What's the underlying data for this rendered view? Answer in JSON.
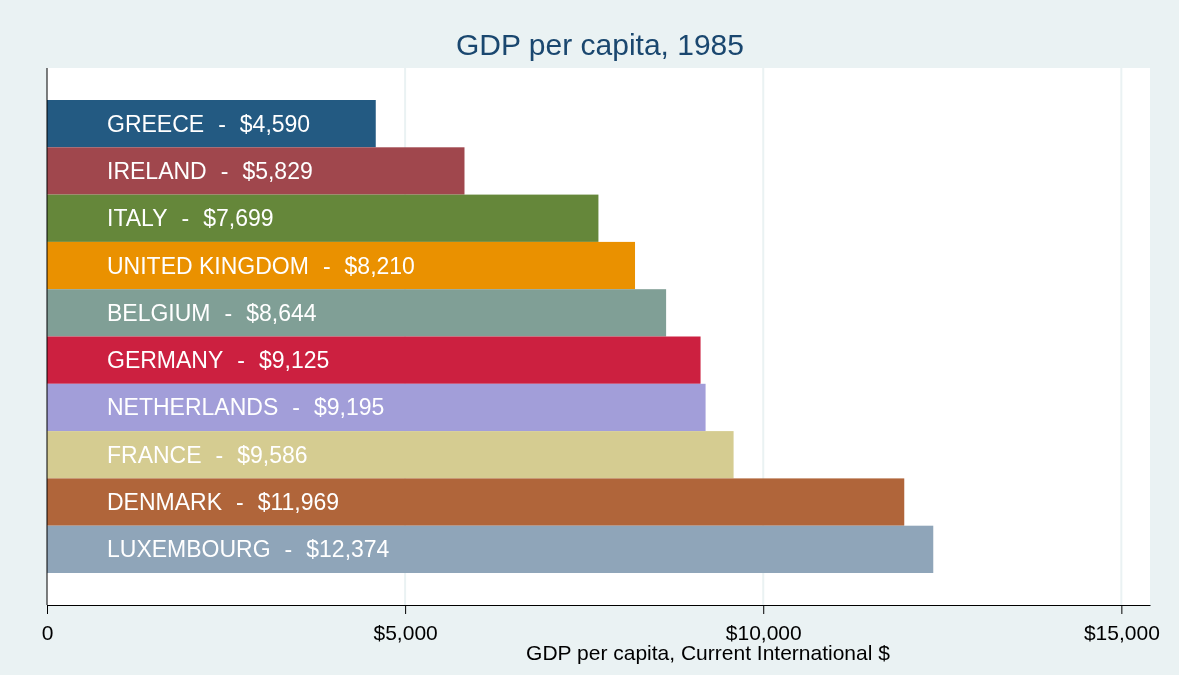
{
  "chart_data": {
    "type": "bar",
    "orientation": "horizontal",
    "title": "GDP per capita, 1985",
    "xlabel": "GDP per capita, Current International $",
    "categories": [
      "GREECE",
      "IRELAND",
      "ITALY",
      "UNITED KINGDOM",
      "BELGIUM",
      "GERMANY",
      "NETHERLANDS",
      "FRANCE",
      "DENMARK",
      "LUXEMBOURG"
    ],
    "values": [
      4590,
      5829,
      7699,
      8210,
      8644,
      9125,
      9195,
      9586,
      11969,
      12374
    ],
    "value_labels": [
      "$4,590",
      "$5,829",
      "$7,699",
      "$8,210",
      "$8,644",
      "$9,125",
      "$9,195",
      "$9,586",
      "$11,969",
      "$12,374"
    ],
    "annotations": [
      {
        "text": "-",
        "y": "GREECE"
      },
      {
        "text": "-",
        "y": "IRELAND"
      },
      {
        "text": "-",
        "y": "ITALY"
      },
      {
        "text": "-",
        "y": "UNITED KINGDOM"
      },
      {
        "text": "-",
        "y": "BELGIUM"
      },
      {
        "text": "-",
        "y": "GERMANY"
      },
      {
        "text": "-",
        "y": "NETHERLANDS"
      },
      {
        "text": "-",
        "y": "FRANCE"
      },
      {
        "text": "-",
        "y": "DENMARK"
      },
      {
        "text": "-",
        "y": "LUXEMBOURG"
      }
    ],
    "colors": [
      "#235a82",
      "#a0474d",
      "#65873a",
      "#ea9100",
      "#809f96",
      "#cc2040",
      "#a29ed9",
      "#d5cc91",
      "#b0653a",
      "#8fa5b9"
    ],
    "xlim": [
      0,
      15400
    ],
    "xticks": [
      0,
      {
        "value": 5000,
        "label": "$5,000"
      },
      {
        "value": 10000,
        "label": "$10,000"
      },
      {
        "value": 15000,
        "label": "$15,000"
      }
    ],
    "grid": "x"
  }
}
